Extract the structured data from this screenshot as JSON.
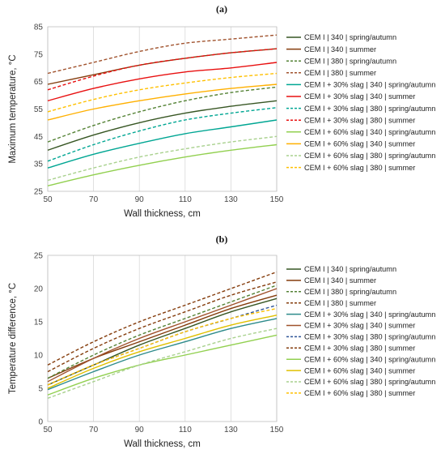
{
  "chart_data": [
    {
      "type": "line",
      "panel_label": "(a)",
      "xlabel": "Wall thickness, cm",
      "ylabel": "Maximum temperature, °C",
      "xlim": [
        50,
        150
      ],
      "ylim": [
        25,
        85
      ],
      "xticks": [
        50,
        70,
        90,
        110,
        130,
        150
      ],
      "yticks": [
        25,
        35,
        45,
        55,
        65,
        75,
        85
      ],
      "grid": "vertical",
      "legend_placement": "right",
      "x": [
        50,
        70,
        90,
        110,
        130,
        150
      ],
      "series": [
        {
          "name": "CEM I | 340 | spring/autumn",
          "color": "#375623",
          "dash": "solid",
          "values": [
            40,
            45.5,
            50,
            53.5,
            56,
            58
          ]
        },
        {
          "name": "CEM I | 340 | summer",
          "color": "#843C0C",
          "dash": "solid",
          "values": [
            64,
            67.5,
            71,
            73.5,
            75.5,
            77
          ]
        },
        {
          "name": "CEM I | 380 | spring/autumn",
          "color": "#548235",
          "dash": "dashed",
          "values": [
            43,
            49,
            54,
            58,
            61,
            63
          ]
        },
        {
          "name": "CEM I | 380 | summer",
          "color": "#A0522D",
          "dash": "dashed",
          "values": [
            68,
            72,
            76,
            79,
            80.5,
            82
          ]
        },
        {
          "name": "CEM I + 30% slag | 340 | spring/autumn",
          "color": "#00A693",
          "dash": "solid",
          "values": [
            33.5,
            38.5,
            42.5,
            46,
            48.5,
            51
          ]
        },
        {
          "name": "CEM I + 30% slag | 340 | summer",
          "color": "#E81010",
          "dash": "solid",
          "values": [
            58,
            62.5,
            66,
            68.5,
            70,
            72
          ]
        },
        {
          "name": "CEM I + 30% slag | 380 | spring/autumn",
          "color": "#00A693",
          "dash": "dashed",
          "values": [
            36,
            42,
            47,
            51,
            53.5,
            55.5
          ]
        },
        {
          "name": "CEM I + 30% slag | 380 | summer",
          "color": "#E81010",
          "dash": "dashed",
          "values": [
            62,
            67,
            71,
            73.5,
            75.5,
            77
          ]
        },
        {
          "name": "CEM I + 60% slag | 340 | spring/autumn",
          "color": "#92D050",
          "dash": "solid",
          "values": [
            27,
            31,
            34.5,
            37.5,
            40,
            42
          ]
        },
        {
          "name": "CEM I + 60% slag | 340 | summer",
          "color": "#FFB000",
          "dash": "solid",
          "values": [
            51,
            55,
            58,
            60.5,
            62.5,
            64
          ]
        },
        {
          "name": "CEM I + 60% slag | 380 | spring/autumn",
          "color": "#A9D18E",
          "dash": "dashed",
          "values": [
            29,
            33.5,
            37.5,
            40.5,
            43,
            45
          ]
        },
        {
          "name": "CEM I + 60% slag | 380 | summer",
          "color": "#FFC000",
          "dash": "dashed",
          "values": [
            54,
            58.5,
            62,
            64.5,
            66.5,
            68
          ]
        }
      ]
    },
    {
      "type": "line",
      "panel_label": "(b)",
      "xlabel": "Wall thickness, cm",
      "ylabel": "Temperature difference, °C",
      "xlim": [
        50,
        150
      ],
      "ylim": [
        0,
        25
      ],
      "xticks": [
        50,
        70,
        90,
        110,
        130,
        150
      ],
      "yticks": [
        0,
        5,
        10,
        15,
        20,
        25
      ],
      "grid": "vertical",
      "legend_placement": "right",
      "x": [
        50,
        70,
        90,
        110,
        130,
        150
      ],
      "series": [
        {
          "name": "CEM I | 340 | spring/autumn",
          "color": "#375623",
          "dash": "solid",
          "values": [
            5.5,
            8.5,
            11.5,
            14,
            16.5,
            18.5
          ]
        },
        {
          "name": "CEM I | 340 | summer",
          "color": "#843C0C",
          "dash": "solid",
          "values": [
            6.5,
            9.5,
            12,
            14.5,
            17,
            19
          ]
        },
        {
          "name": "CEM I | 380 | spring/autumn",
          "color": "#548235",
          "dash": "dashed",
          "values": [
            6.5,
            10,
            13,
            15.5,
            18,
            20.5
          ]
        },
        {
          "name": "CEM I | 380 | summer",
          "color": "#843C0C",
          "dash": "dashed",
          "values": [
            7.5,
            11,
            14,
            16.5,
            19,
            21
          ]
        },
        {
          "name": "CEM I + 30% slag | 340 | spring/autumn",
          "color": "#2E8B8B",
          "dash": "solid",
          "values": [
            4.8,
            7.5,
            10,
            12,
            14,
            15.5
          ]
        },
        {
          "name": "CEM I + 30% slag | 340 | summer",
          "color": "#A0522D",
          "dash": "solid",
          "values": [
            6,
            9.5,
            12.5,
            15,
            17.5,
            20
          ]
        },
        {
          "name": "CEM I + 30% slag | 380 | spring/autumn",
          "color": "#2F5597",
          "dash": "dashed",
          "values": [
            5.5,
            8.5,
            11,
            13.5,
            15.5,
            17.5
          ]
        },
        {
          "name": "CEM I + 30% slag | 380 | summer",
          "color": "#843C0C",
          "dash": "dashed",
          "values": [
            8.5,
            12,
            15,
            17.5,
            20,
            22.5
          ]
        },
        {
          "name": "CEM I + 60% slag | 340 | spring/autumn",
          "color": "#92D050",
          "dash": "solid",
          "values": [
            4,
            6.5,
            8.5,
            10,
            11.5,
            13
          ]
        },
        {
          "name": "CEM I + 60% slag | 340 | summer",
          "color": "#E0C000",
          "dash": "solid",
          "values": [
            5,
            8,
            10.5,
            12.5,
            14.5,
            16
          ]
        },
        {
          "name": "CEM I + 60% slag | 380 | spring/autumn",
          "color": "#A9D18E",
          "dash": "dashed",
          "values": [
            3.5,
            6,
            8.5,
            10.5,
            12.5,
            14
          ]
        },
        {
          "name": "CEM I + 60% slag | 380 | summer",
          "color": "#FFC000",
          "dash": "dashed",
          "values": [
            5.5,
            8.5,
            11,
            13.5,
            15.5,
            17
          ]
        }
      ]
    }
  ]
}
